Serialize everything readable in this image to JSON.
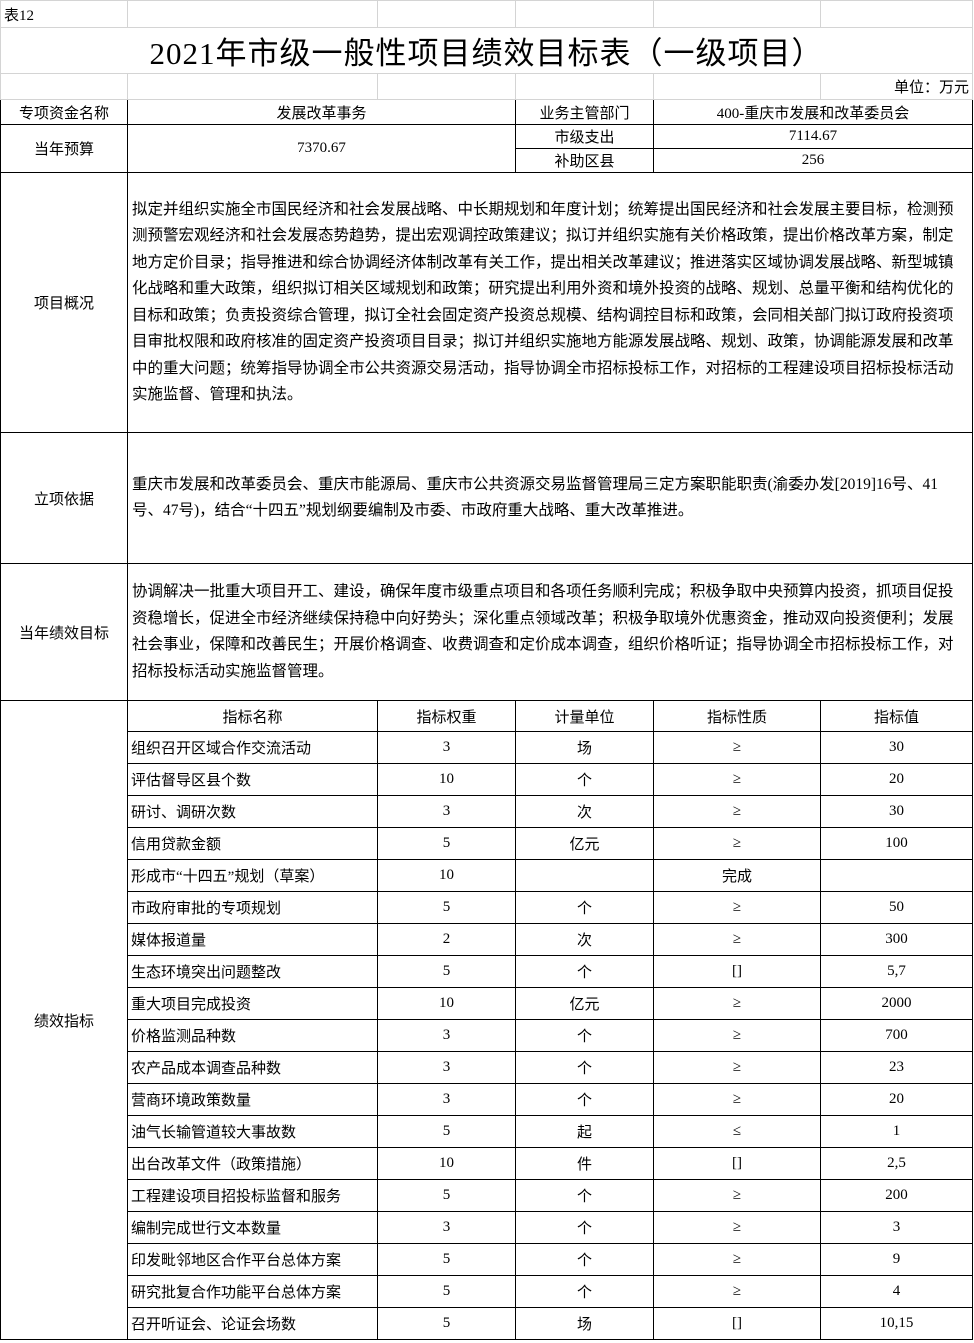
{
  "sheet_label": "表12",
  "title": "2021年市级一般性项目绩效目标表（一级项目）",
  "unit": "单位：万元",
  "fund_name_label": "专项资金名称",
  "fund_name": "发展改革事务",
  "dept_label": "业务主管部门",
  "dept": "400-重庆市发展和改革委员会",
  "budget_label": "当年预算",
  "budget": "7370.67",
  "city_spend_label": "市级支出",
  "city_spend": "7114.67",
  "subsidy_label": "补助区县",
  "subsidy": "256",
  "overview_label": "项目概况",
  "overview": "拟定并组织实施全市国民经济和社会发展战略、中长期规划和年度计划；统筹提出国民经济和社会发展主要目标，检测预测预警宏观经济和社会发展态势趋势，提出宏观调控政策建议；拟订并组织实施有关价格政策，提出价格改革方案，制定地方定价目录；指导推进和综合协调经济体制改革有关工作，提出相关改革建议；推进落实区域协调发展战略、新型城镇化战略和重大政策，组织拟订相关区域规划和政策；研究提出利用外资和境外投资的战略、规划、总量平衡和结构优化的目标和政策；负责投资综合管理，拟订全社会固定资产投资总规模、结构调控目标和政策，会同相关部门拟订政府投资项目审批权限和政府核准的固定资产投资项目目录；拟订并组织实施地方能源发展战略、规划、政策，协调能源发展和改革中的重大问题；统筹指导协调全市公共资源交易活动，指导协调全市招标投标工作，对招标的工程建设项目招标投标活动实施监督、管理和执法。",
  "basis_label": "立项依据",
  "basis": "重庆市发展和改革委员会、重庆市能源局、重庆市公共资源交易监督管理局三定方案职能职责(渝委办发[2019]16号、41号、47号)，结合“十四五”规划纲要编制及市委、市政府重大战略、重大改革推进。",
  "goal_label": "当年绩效目标",
  "goal": "协调解决一批重大项目开工、建设，确保年度市级重点项目和各项任务顺利完成；积极争取中央预算内投资，抓项目促投资稳增长，促进全市经济继续保持稳中向好势头；深化重点领域改革；积极争取境外优惠资金，推动双向投资便利；发展社会事业，保障和改善民生；开展价格调查、收费调查和定价成本调查，组织价格听证；指导协调全市招标投标工作，对招标投标活动实施监督管理。",
  "metrics_label": "绩效指标",
  "metric_headers": [
    "指标名称",
    "指标权重",
    "计量单位",
    "指标性质",
    "指标值"
  ],
  "metrics": [
    [
      "组织召开区域合作交流活动",
      "3",
      "场",
      "≥",
      "30"
    ],
    [
      "评估督导区县个数",
      "10",
      "个",
      "≥",
      "20"
    ],
    [
      "研讨、调研次数",
      "3",
      "次",
      "≥",
      "30"
    ],
    [
      "信用贷款金额",
      "5",
      "亿元",
      "≥",
      "100"
    ],
    [
      "形成市“十四五”规划（草案）",
      "10",
      "",
      "完成",
      ""
    ],
    [
      "市政府审批的专项规划",
      "5",
      "个",
      "≥",
      "50"
    ],
    [
      "媒体报道量",
      "2",
      "次",
      "≥",
      "300"
    ],
    [
      "生态环境突出问题整改",
      "5",
      "个",
      "[]",
      "5,7"
    ],
    [
      "重大项目完成投资",
      "10",
      "亿元",
      "≥",
      "2000"
    ],
    [
      "价格监测品种数",
      "3",
      "个",
      "≥",
      "700"
    ],
    [
      "农产品成本调查品种数",
      "3",
      "个",
      "≥",
      "23"
    ],
    [
      "营商环境政策数量",
      "3",
      "个",
      "≥",
      "20"
    ],
    [
      "油气长输管道较大事故数",
      "5",
      "起",
      "≤",
      "1"
    ],
    [
      "出台改革文件（政策措施）",
      "10",
      "件",
      "[]",
      "2,5"
    ],
    [
      "工程建设项目招投标监督和服务",
      "5",
      "个",
      "≥",
      "200"
    ],
    [
      "编制完成世行文本数量",
      "3",
      "个",
      "≥",
      "3"
    ],
    [
      "印发毗邻地区合作平台总体方案",
      "5",
      "个",
      "≥",
      "9"
    ],
    [
      "研究批复合作功能平台总体方案",
      "5",
      "个",
      "≥",
      "4"
    ],
    [
      "召开听证会、论证会场数",
      "5",
      "场",
      "[]",
      "10,15"
    ]
  ]
}
